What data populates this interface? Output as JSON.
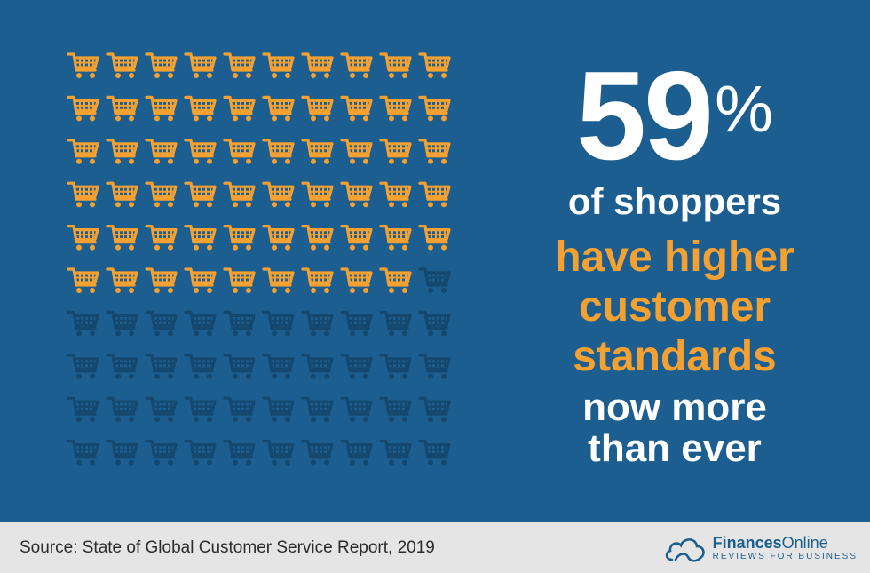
{
  "colors": {
    "background": "#1b5e8f",
    "highlight": "#f5a132",
    "muted": "#14486f",
    "footer": "#e5e5e5"
  },
  "chart_data": {
    "type": "pictogram",
    "icon": "shopping-cart-icon",
    "total": 100,
    "highlighted": 59,
    "grid": {
      "rows": 10,
      "cols": 10
    },
    "value": "59",
    "value_suffix": "%"
  },
  "headline": {
    "line1": "of shoppers",
    "line2": "have higher",
    "line3": "customer",
    "line4": "standards",
    "line5": "now more",
    "line6": "than ever"
  },
  "footer": {
    "source": "Source: State of Global Customer Service Report, 2019",
    "logo_name_bold": "Finances",
    "logo_name_rest": "Online",
    "logo_tagline": "REVIEWS FOR BUSINESS",
    "logo_icon": "cloud-icon"
  }
}
